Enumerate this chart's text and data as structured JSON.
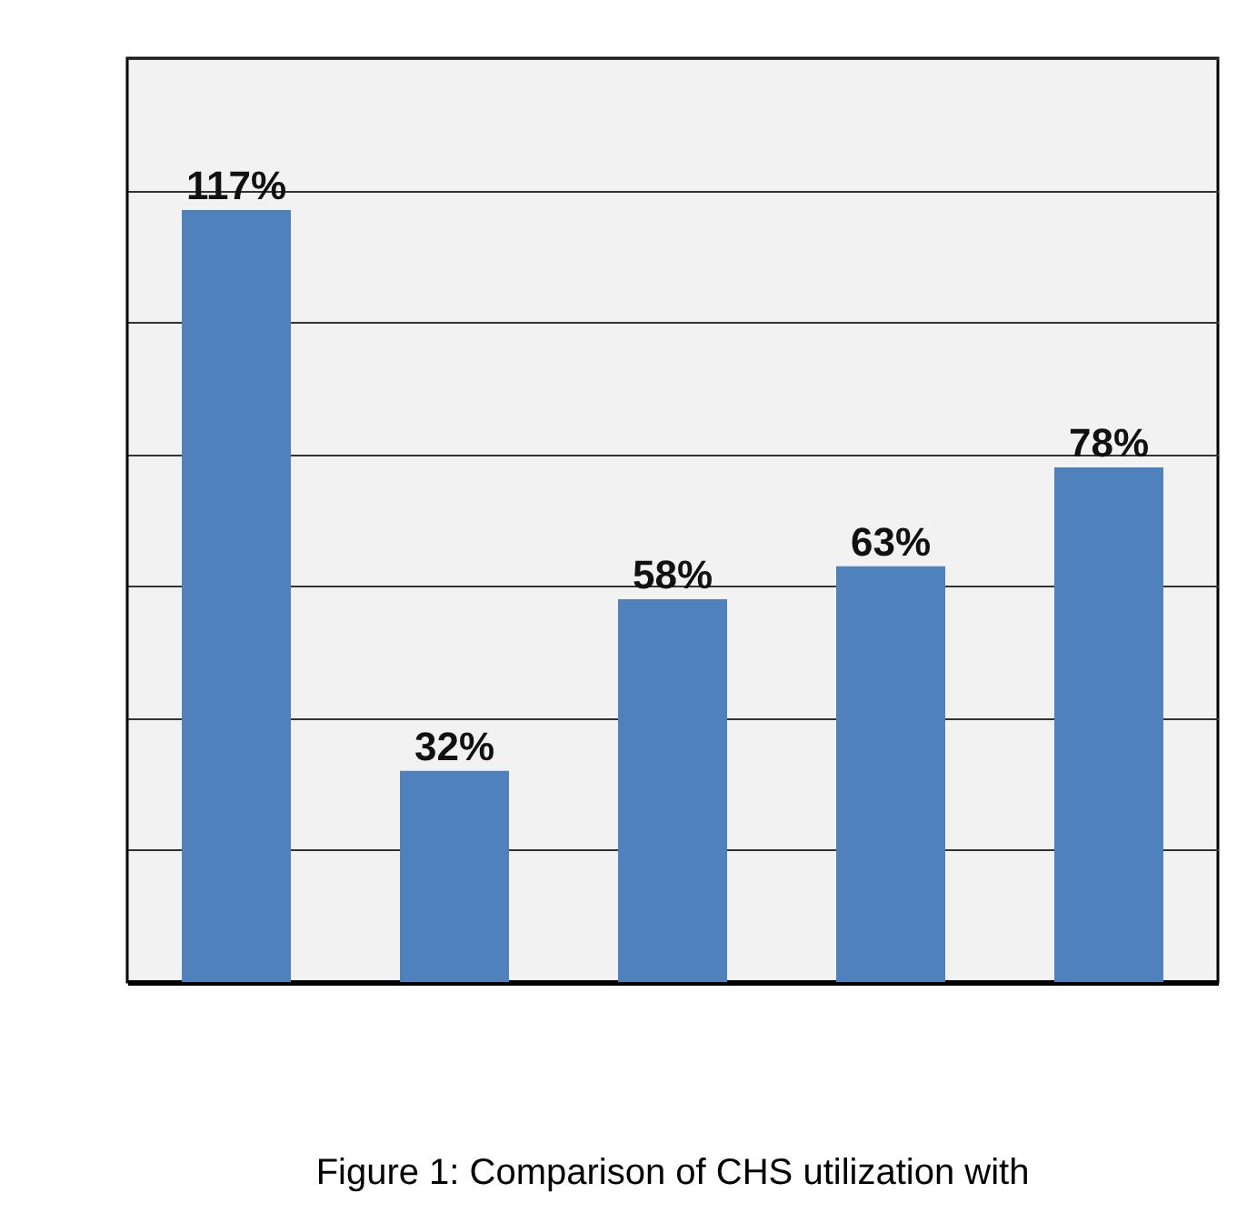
{
  "chart_data": {
    "type": "bar",
    "title": "Figure 1:  Comparison of CHS utilization with",
    "categories": [
      null,
      null,
      null,
      null,
      null
    ],
    "values": [
      117,
      32,
      58,
      63,
      78
    ],
    "color": "#4f81bd",
    "value_labels": [
      "117%",
      "32%",
      "58%",
      "63%",
      "78%"
    ],
    "ylim": [
      0,
      140
    ],
    "yticks": [
      0,
      20,
      40,
      60,
      80,
      100,
      120,
      140
    ],
    "grid": "y",
    "tick_labels": false
  }
}
